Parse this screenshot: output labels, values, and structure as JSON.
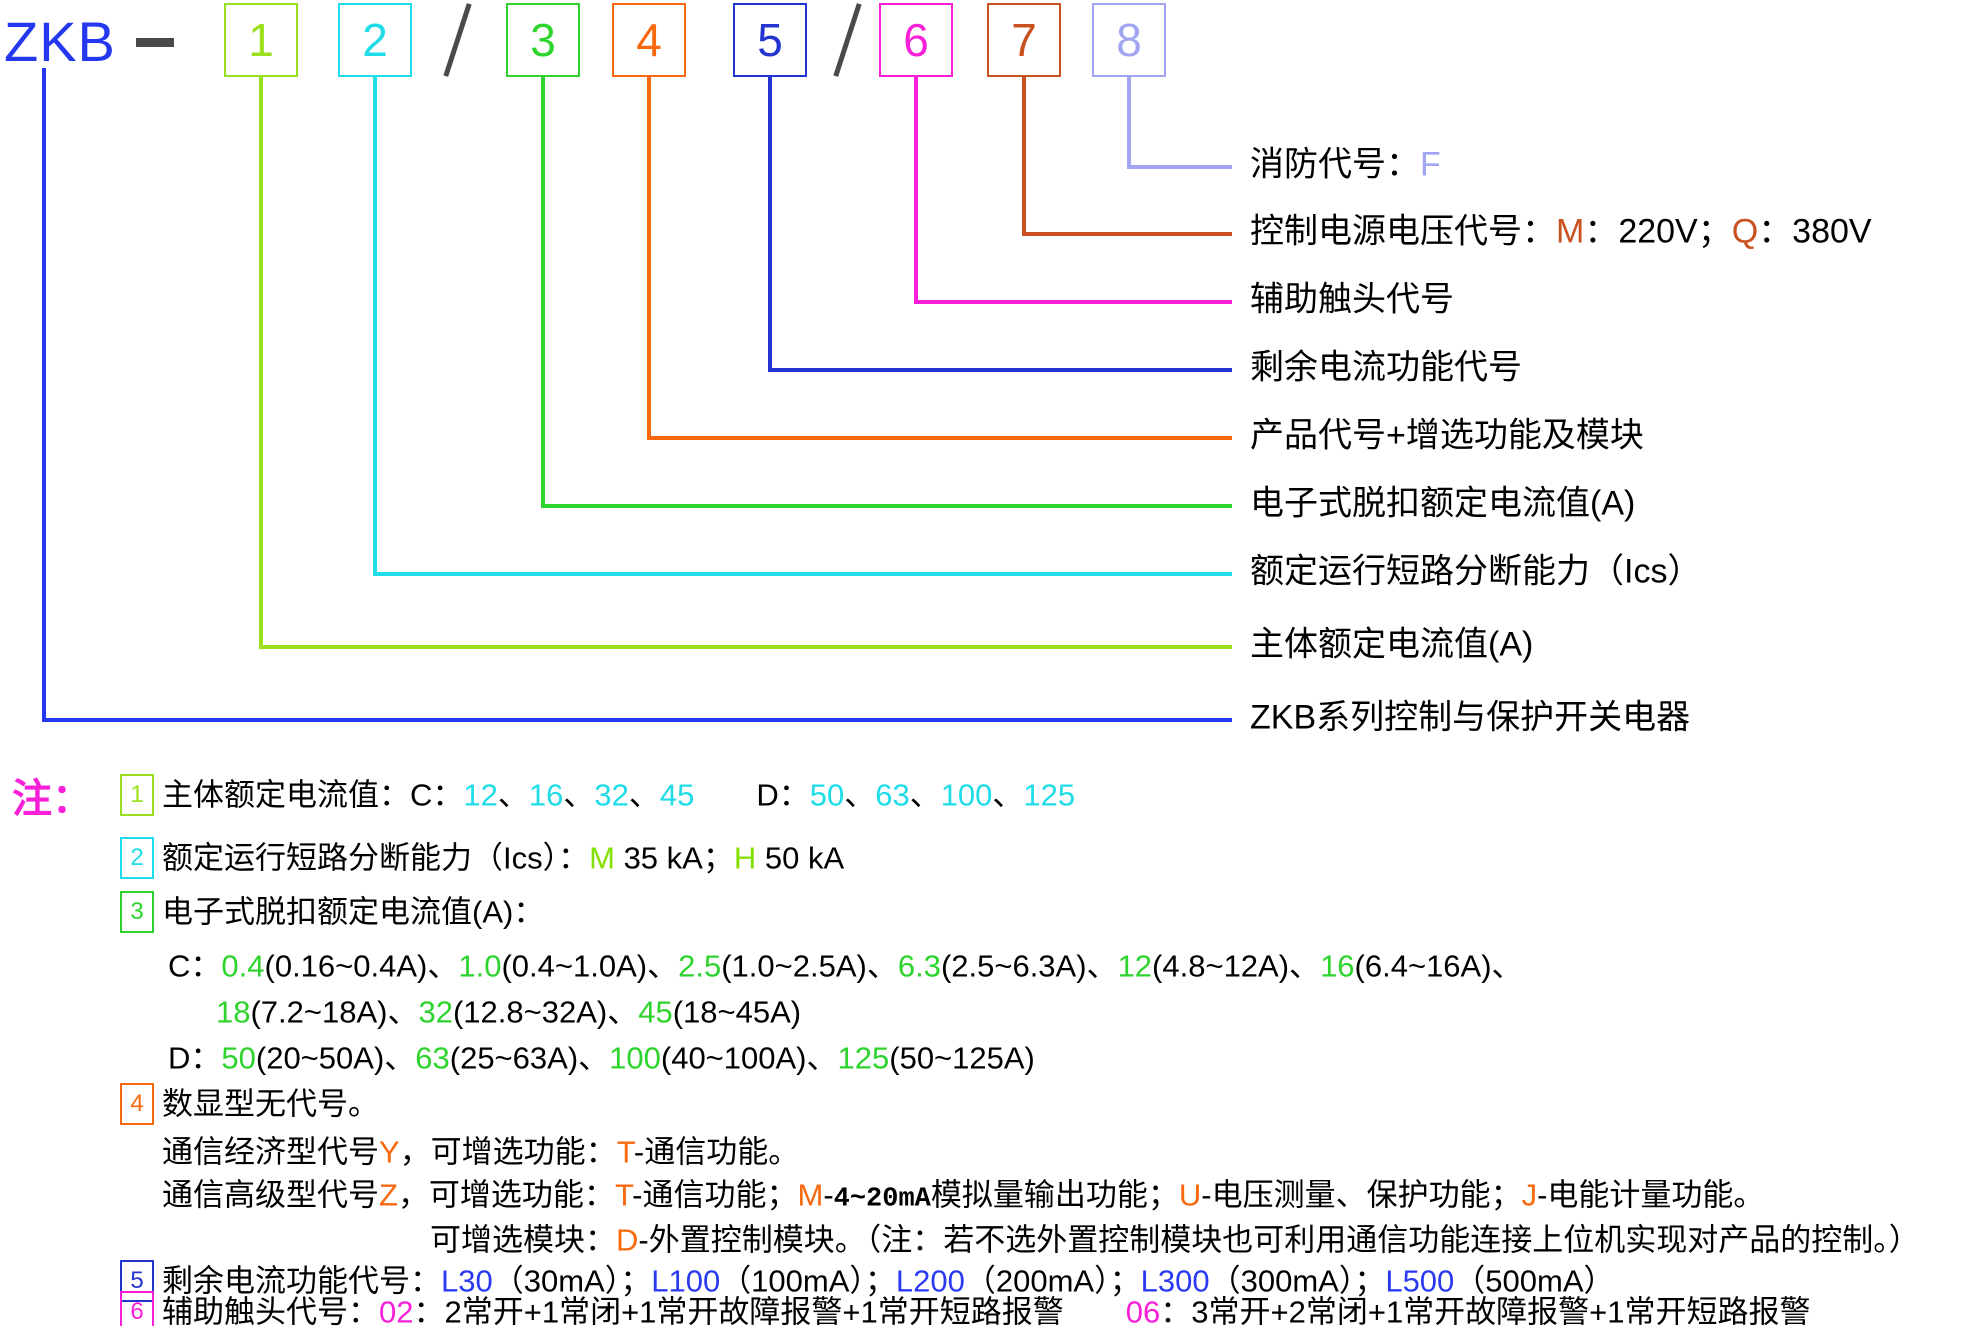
{
  "palette": {
    "royal": "#2438f0",
    "chartreuse": "#9ae01c",
    "cyan": "#1edce8",
    "green": "#2ed32e",
    "orange": "#f8690f",
    "blue": "#2334cf",
    "magenta": "#f81fd9",
    "vermillion": "#c9511f",
    "lavender": "#a2a6f2",
    "lime": "#84e000",
    "note_blue": "#2a3af0",
    "dark": "#4a4a4a"
  },
  "brand": {
    "text": "ZKB",
    "dash": "−",
    "separator": "/"
  },
  "code_boxes": [
    {
      "num": "1",
      "color": "#9ae01c"
    },
    {
      "num": "2",
      "color": "#1edce8"
    },
    {
      "num": "3",
      "color": "#2ed32e"
    },
    {
      "num": "4",
      "color": "#f8690f"
    },
    {
      "num": "5",
      "color": "#2334cf"
    },
    {
      "num": "6",
      "color": "#f81fd9"
    },
    {
      "num": "7",
      "color": "#c9511f"
    },
    {
      "num": "8",
      "color": "#a2a6f2"
    }
  ],
  "callouts": [
    {
      "name": "fire-code",
      "source_box": "8",
      "color": "#a2a6f2",
      "segments": [
        {
          "t": "消防代号："
        },
        {
          "t": "F",
          "c": "#a2a6f2"
        }
      ]
    },
    {
      "name": "control-voltage",
      "source_box": "7",
      "color": "#c9511f",
      "segments": [
        {
          "t": "控制电源电压代号："
        },
        {
          "t": "M",
          "c": "#c9511f"
        },
        {
          "t": "：220V；"
        },
        {
          "t": "Q",
          "c": "#c9511f"
        },
        {
          "t": "：380V"
        }
      ]
    },
    {
      "name": "aux-contact",
      "source_box": "6",
      "color": "#f81fd9",
      "segments": [
        {
          "t": "辅助触头代号"
        }
      ]
    },
    {
      "name": "residual-current",
      "source_box": "5",
      "color": "#2334cf",
      "segments": [
        {
          "t": "剩余电流功能代号"
        }
      ]
    },
    {
      "name": "product-code",
      "source_box": "4",
      "color": "#f8690f",
      "segments": [
        {
          "t": "产品代号+增选功能及模块"
        }
      ]
    },
    {
      "name": "electronic-trip-current",
      "source_box": "3",
      "color": "#2ed32e",
      "segments": [
        {
          "t": "电子式脱扣额定电流值(A)"
        }
      ]
    },
    {
      "name": "breaking-capacity",
      "source_box": "2",
      "color": "#1edce8",
      "segments": [
        {
          "t": "额定运行短路分断能力（Ics）"
        }
      ]
    },
    {
      "name": "main-rated-current",
      "source_box": "1",
      "color": "#9ae01c",
      "segments": [
        {
          "t": "主体额定电流值(A)"
        }
      ]
    },
    {
      "name": "series-name",
      "source_box": "ZKB",
      "color": "#2438f0",
      "segments": [
        {
          "t": "ZKB系列控制与保护开关电器"
        }
      ]
    }
  ],
  "notes": {
    "marker": "注：",
    "items": [
      {
        "num": "1",
        "color": "#9ae01c",
        "lines": [
          [
            {
              "t": "主体额定电流值：C："
            },
            {
              "t": "12",
              "c": "#1edce8"
            },
            {
              "t": "、"
            },
            {
              "t": "16",
              "c": "#1edce8"
            },
            {
              "t": "、"
            },
            {
              "t": "32",
              "c": "#1edce8"
            },
            {
              "t": "、"
            },
            {
              "t": "45",
              "c": "#1edce8"
            },
            {
              "t": "　　D："
            },
            {
              "t": "50",
              "c": "#1edce8"
            },
            {
              "t": "、"
            },
            {
              "t": "63",
              "c": "#1edce8"
            },
            {
              "t": "、"
            },
            {
              "t": "100",
              "c": "#1edce8"
            },
            {
              "t": "、"
            },
            {
              "t": "125",
              "c": "#1edce8"
            }
          ]
        ]
      },
      {
        "num": "2",
        "color": "#1edce8",
        "lines": [
          [
            {
              "t": "额定运行短路分断能力（Ics）："
            },
            {
              "t": "M",
              "c": "#84e000"
            },
            {
              "t": " 35 kA；"
            },
            {
              "t": "H",
              "c": "#84e000"
            },
            {
              "t": " 50 kA"
            }
          ]
        ]
      },
      {
        "num": "3",
        "color": "#2ed32e",
        "lines": [
          [
            {
              "t": "电子式脱扣额定电流值(A)："
            }
          ],
          [
            {
              "t": "C："
            },
            {
              "t": "0.4",
              "c": "#2ed32e"
            },
            {
              "t": "(0.16~0.4A)、"
            },
            {
              "t": "1.0",
              "c": "#2ed32e"
            },
            {
              "t": "(0.4~1.0A)、"
            },
            {
              "t": "2.5",
              "c": "#2ed32e"
            },
            {
              "t": "(1.0~2.5A)、"
            },
            {
              "t": "6.3",
              "c": "#2ed32e"
            },
            {
              "t": "(2.5~6.3A)、"
            },
            {
              "t": "12",
              "c": "#2ed32e"
            },
            {
              "t": "(4.8~12A)、"
            },
            {
              "t": "16",
              "c": "#2ed32e"
            },
            {
              "t": "(6.4~16A)、"
            }
          ],
          [
            {
              "t": "18",
              "c": "#2ed32e"
            },
            {
              "t": "(7.2~18A)、"
            },
            {
              "t": "32",
              "c": "#2ed32e"
            },
            {
              "t": "(12.8~32A)、"
            },
            {
              "t": "45",
              "c": "#2ed32e"
            },
            {
              "t": "(18~45A)"
            }
          ],
          [
            {
              "t": "D："
            },
            {
              "t": "50",
              "c": "#2ed32e"
            },
            {
              "t": "(20~50A)、"
            },
            {
              "t": "63",
              "c": "#2ed32e"
            },
            {
              "t": "(25~63A)、"
            },
            {
              "t": "100",
              "c": "#2ed32e"
            },
            {
              "t": "(40~100A)、"
            },
            {
              "t": "125",
              "c": "#2ed32e"
            },
            {
              "t": "(50~125A)"
            }
          ]
        ]
      },
      {
        "num": "4",
        "color": "#f8690f",
        "lines": [
          [
            {
              "t": "数显型无代号。"
            }
          ],
          [
            {
              "t": "通信经济型代号"
            },
            {
              "t": "Y",
              "c": "#f8690f"
            },
            {
              "t": "，可增选功能："
            },
            {
              "t": "T",
              "c": "#f8690f"
            },
            {
              "t": "-通信功能。"
            }
          ],
          [
            {
              "t": "通信高级型代号"
            },
            {
              "t": "Z",
              "c": "#f8690f"
            },
            {
              "t": "，可增选功能："
            },
            {
              "t": "T",
              "c": "#f8690f"
            },
            {
              "t": "-通信功能；"
            },
            {
              "t": "M",
              "c": "#f8690f"
            },
            {
              "t": "-"
            },
            {
              "t": "4~20mA",
              "b": true
            },
            {
              "t": "模拟量输出功能；"
            },
            {
              "t": "U",
              "c": "#f8690f"
            },
            {
              "t": "-电压测量、保护功能；"
            },
            {
              "t": "J",
              "c": "#f8690f"
            },
            {
              "t": "-电能计量功能。"
            }
          ],
          [
            {
              "t": "可增选模块："
            },
            {
              "t": "D",
              "c": "#f8690f"
            },
            {
              "t": "-外置控制模块。（注：若不选外置控制模块也可利用通信功能连接上位机实现对产品的控制。）"
            }
          ]
        ]
      },
      {
        "num": "5",
        "color": "#2334cf",
        "lines": [
          [
            {
              "t": "剩余电流功能代号："
            },
            {
              "t": "L30",
              "c": "#2a3af0"
            },
            {
              "t": "（30mA）；"
            },
            {
              "t": "L100",
              "c": "#2a3af0"
            },
            {
              "t": "（100mA）；"
            },
            {
              "t": "L200",
              "c": "#2a3af0"
            },
            {
              "t": "（200mA）；"
            },
            {
              "t": "L300",
              "c": "#2a3af0"
            },
            {
              "t": "（300mA）；"
            },
            {
              "t": "L500",
              "c": "#2a3af0"
            },
            {
              "t": "（500mA）"
            }
          ]
        ]
      },
      {
        "num": "6",
        "color": "#f81fd9",
        "lines": [
          [
            {
              "t": "辅助触头代号："
            },
            {
              "t": "02",
              "c": "#f81fd9"
            },
            {
              "t": "：2常开+1常闭+1常开故障报警+1常开短路报警　　"
            },
            {
              "t": "06",
              "c": "#f81fd9"
            },
            {
              "t": "：3常开+2常闭+1常开故障报警+1常开短路报警"
            }
          ]
        ]
      }
    ]
  }
}
